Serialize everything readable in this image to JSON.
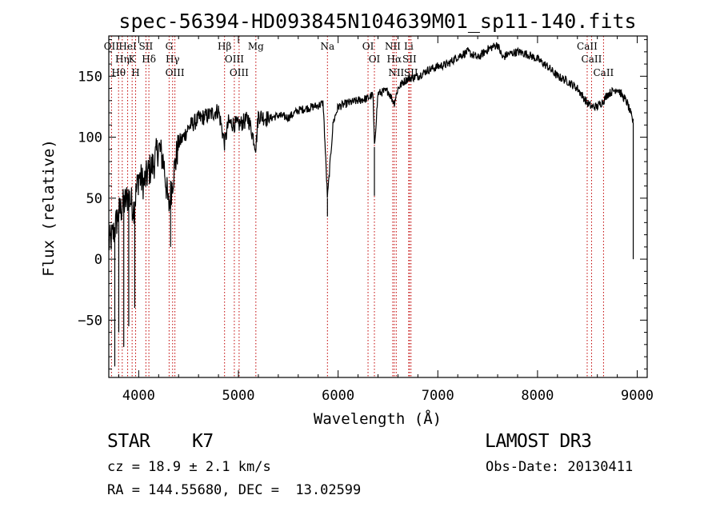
{
  "chart_data": {
    "type": "line",
    "title": "spec-56394-HD093845N104639M01_sp11-140.fits",
    "xlabel": "Wavelength (Å)",
    "ylabel": "Flux (relative)",
    "xlim": [
      3700,
      9100
    ],
    "ylim": [
      -97,
      183
    ],
    "xticks": [
      4000,
      5000,
      6000,
      7000,
      8000,
      9000
    ],
    "yticks": [
      -50,
      0,
      50,
      100,
      150
    ],
    "grid": false,
    "series": [
      {
        "name": "spectrum",
        "x": [
          3700,
          3750,
          3800,
          3850,
          3900,
          3950,
          4000,
          4050,
          4100,
          4150,
          4200,
          4250,
          4300,
          4340,
          4400,
          4450,
          4500,
          4600,
          4700,
          4800,
          4861,
          4900,
          5000,
          5100,
          5175,
          5200,
          5300,
          5400,
          5500,
          5600,
          5700,
          5800,
          5850,
          5893,
          5950,
          6000,
          6100,
          6200,
          6300,
          6350,
          6364,
          6400,
          6500,
          6563,
          6600,
          6650,
          6700,
          6800,
          6900,
          7000,
          7100,
          7200,
          7300,
          7400,
          7500,
          7600,
          7650,
          7700,
          7800,
          7900,
          8000,
          8100,
          8200,
          8300,
          8400,
          8500,
          8542,
          8600,
          8662,
          8700,
          8800,
          8900,
          8960
        ],
        "values": [
          12,
          22,
          38,
          45,
          52,
          42,
          68,
          62,
          72,
          78,
          92,
          80,
          42,
          65,
          95,
          100,
          108,
          115,
          118,
          122,
          95,
          112,
          110,
          115,
          92,
          118,
          115,
          118,
          116,
          122,
          124,
          126,
          128,
          50,
          112,
          125,
          128,
          130,
          132,
          135,
          92,
          136,
          138,
          128,
          140,
          145,
          148,
          150,
          155,
          158,
          160,
          166,
          170,
          165,
          172,
          176,
          165,
          168,
          170,
          168,
          164,
          158,
          150,
          146,
          140,
          128,
          125,
          125,
          130,
          135,
          140,
          128,
          112
        ]
      }
    ],
    "lines": [
      {
        "label": "OII",
        "wavelength": 3727
      },
      {
        "label": "Hη",
        "wavelength": 3835
      },
      {
        "label": "Hθ",
        "wavelength": 3798
      },
      {
        "label": "HeI",
        "wavelength": 3889
      },
      {
        "label": "K",
        "wavelength": 3934
      },
      {
        "label": "H",
        "wavelength": 3969
      },
      {
        "label": "SII",
        "wavelength": 4072
      },
      {
        "label": "Hδ",
        "wavelength": 4102
      },
      {
        "label": "G",
        "wavelength": 4305
      },
      {
        "label": "Hγ",
        "wavelength": 4340
      },
      {
        "label": "OIII",
        "wavelength": 4363
      },
      {
        "label": "Hβ",
        "wavelength": 4861
      },
      {
        "label": "OIII",
        "wavelength": 4959
      },
      {
        "label": "OIII",
        "wavelength": 5007
      },
      {
        "label": "Mg",
        "wavelength": 5175
      },
      {
        "label": "Na",
        "wavelength": 5893
      },
      {
        "label": "OI",
        "wavelength": 6300
      },
      {
        "label": "OI",
        "wavelength": 6364
      },
      {
        "label": "NII",
        "wavelength": 6548
      },
      {
        "label": "Hα",
        "wavelength": 6563
      },
      {
        "label": "NII",
        "wavelength": 6583
      },
      {
        "label": "Li",
        "wavelength": 6708
      },
      {
        "label": "SII",
        "wavelength": 6716
      },
      {
        "label": "SII",
        "wavelength": 6731
      },
      {
        "label": "CaII",
        "wavelength": 8498
      },
      {
        "label": "CaII",
        "wavelength": 8542
      },
      {
        "label": "CaII",
        "wavelength": 8662
      }
    ]
  },
  "info": {
    "object_class": "STAR",
    "subclass": "K7",
    "survey": "LAMOST DR3",
    "redshift_text": "cz = 18.9 ± 2.1 km/s",
    "obs_date_text": "Obs-Date: 20130411",
    "coords_text": "RA = 144.55680, DEC =  13.02599"
  },
  "colors": {
    "axis": "#000000",
    "spectrum": "#000000",
    "line_markers": "#c00000",
    "background": "#ffffff"
  }
}
